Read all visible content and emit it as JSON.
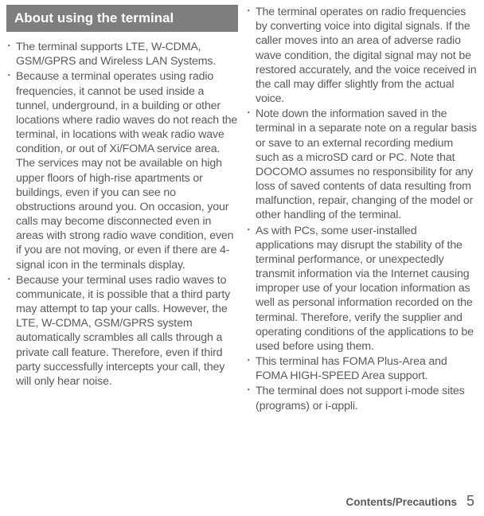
{
  "header": {
    "title": "About using the terminal",
    "bg_color": "#7e7e7e",
    "text_color": "#ffffff"
  },
  "left_column": {
    "bullets": [
      "The terminal supports LTE, W-CDMA, GSM/GPRS and Wireless LAN Systems.",
      "Because a terminal operates using radio frequencies, it cannot be used inside a tunnel, underground, in a building or other locations where radio waves do not reach the terminal, in locations with weak radio wave condition, or out of Xi/FOMA service area. The services may not be available on high upper floors of high-rise apartments or buildings, even if you can see no obstructions around you. On occasion, your calls may become disconnected even in areas with strong radio wave condition, even if you are not moving, or even if there are 4-signal icon in the terminals display.",
      "Because your terminal uses radio waves to communicate, it is possible that a third party may attempt to tap your calls. However, the LTE, W-CDMA, GSM/GPRS system automatically scrambles all calls through a private call feature. Therefore, even if third party successfully intercepts your call, they will only hear noise."
    ]
  },
  "right_column": {
    "bullets": [
      "The terminal operates on radio frequencies by converting voice into digital signals. If the caller moves into an area of adverse radio wave condition, the digital signal may not be restored accurately, and the voice received in the call may differ slightly from the actual voice.",
      "Note down the information saved in the terminal in a separate note on a regular basis or save to an external recording medium such as a microSD card or PC. Note that DOCOMO assumes no responsibility for any loss of saved contents of data resulting from malfunction, repair, changing of the model or other handling of the terminal.",
      "As with PCs, some user-installed applications may disrupt the stability of the terminal performance, or unexpectedly transmit information via the Internet causing improper use of your location information as well as personal information recorded on the terminal. Therefore, verify the supplier and operating conditions of the applications to be used before using them.",
      "This terminal has FOMA Plus-Area and FOMA HIGH-SPEED Area support.",
      "The terminal does not support i-mode sites (programs) or i-αppli."
    ]
  },
  "footer": {
    "label": "Contents/Precautions",
    "page": "5"
  },
  "style": {
    "body_font_size": 14.2,
    "body_line_height": 1.28,
    "body_color": "#5a5a5a",
    "header_font_size": 17
  }
}
